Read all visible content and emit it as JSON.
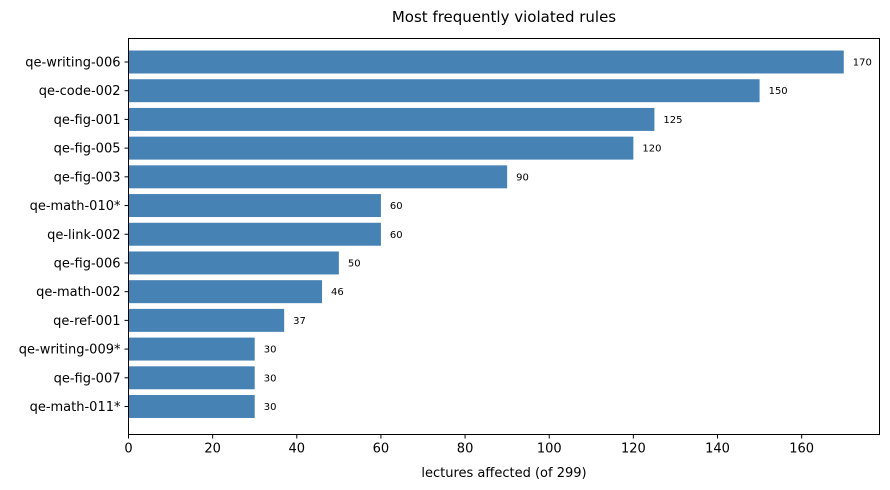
{
  "chart_data": {
    "type": "bar",
    "orientation": "horizontal",
    "title": "Most frequently violated rules",
    "xlabel": "lectures affected (of 299)",
    "ylabel": "",
    "categories": [
      "qe-writing-006",
      "qe-code-002",
      "qe-fig-001",
      "qe-fig-005",
      "qe-fig-003",
      "qe-math-010*",
      "qe-link-002",
      "qe-fig-006",
      "qe-math-002",
      "qe-ref-001",
      "qe-writing-009*",
      "qe-fig-007",
      "qe-math-011*"
    ],
    "values": [
      170,
      150,
      125,
      120,
      90,
      60,
      60,
      50,
      46,
      37,
      30,
      30,
      30
    ],
    "data_labels": [
      "170",
      "150",
      "125",
      "120",
      "90",
      "60",
      "60",
      "50",
      "46",
      "37",
      "30",
      "30",
      "30"
    ],
    "xlim": [
      0,
      178.5
    ],
    "xticks": [
      0,
      20,
      40,
      60,
      80,
      100,
      120,
      140,
      160
    ],
    "xtick_labels": [
      "0",
      "20",
      "40",
      "60",
      "80",
      "100",
      "120",
      "140",
      "160"
    ],
    "grid": false,
    "legend": "none",
    "bar_color": "#4682b4"
  }
}
